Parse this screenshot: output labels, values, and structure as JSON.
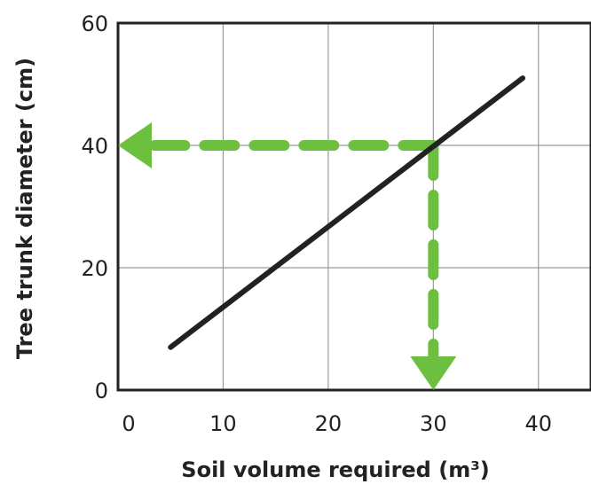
{
  "chart_data": {
    "type": "line",
    "xlabel": "Soil volume required (m³)",
    "ylabel": "Tree trunk diameter (cm)",
    "xlim": [
      0,
      45
    ],
    "ylim": [
      0,
      60
    ],
    "x_ticks": [
      "0",
      "10",
      "20",
      "30",
      "40"
    ],
    "y_ticks": [
      "0",
      "20",
      "40",
      "60"
    ],
    "grid": true,
    "series": [
      {
        "x": [
          5,
          38.5
        ],
        "y": [
          7,
          51
        ]
      }
    ],
    "annotations": [
      {
        "type": "dashed-arrow",
        "from": [
          30,
          40
        ],
        "to": [
          0,
          40
        ],
        "color": "#6cbf3f"
      },
      {
        "type": "dashed-arrow",
        "from": [
          30,
          40
        ],
        "to": [
          30,
          0
        ],
        "color": "#6cbf3f"
      }
    ],
    "line_color": "#222222",
    "grid_color": "#9a9a9a"
  }
}
